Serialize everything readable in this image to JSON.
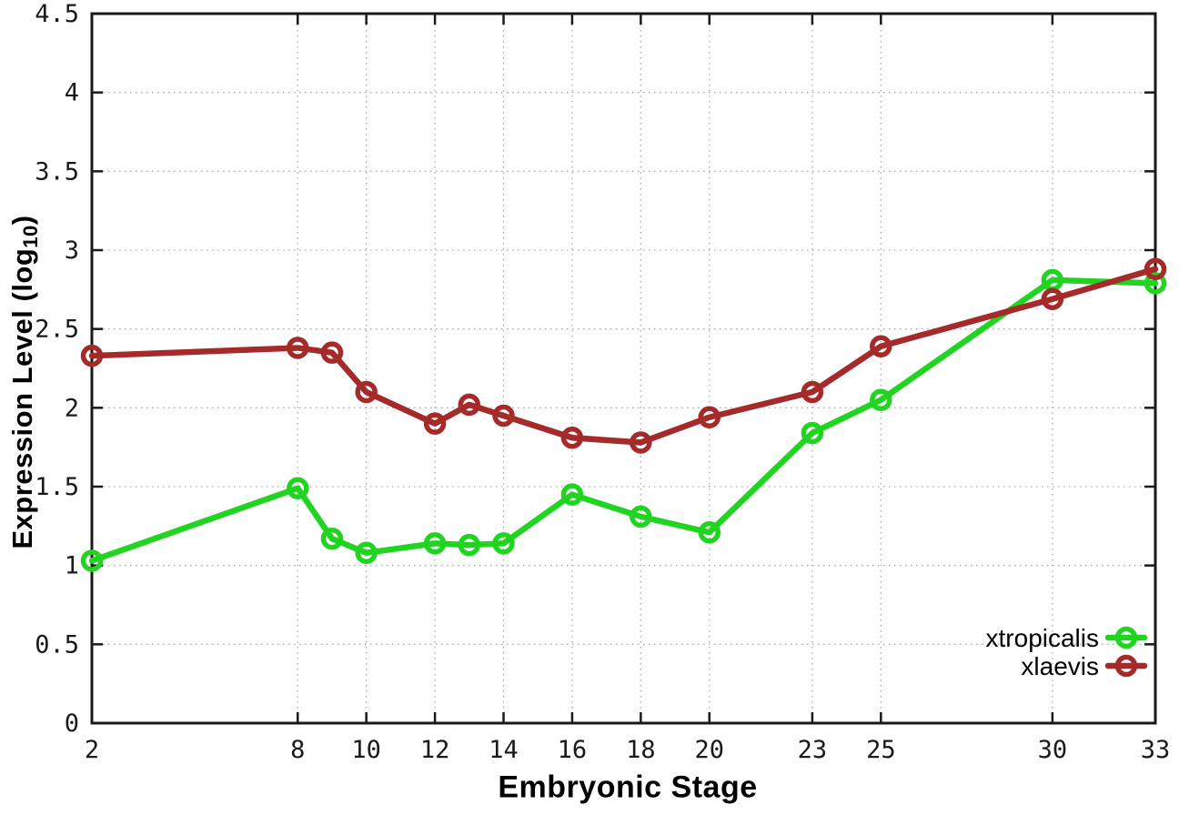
{
  "chart_data": {
    "type": "line",
    "title": "",
    "xlabel": "Embryonic Stage",
    "ylabel": "Expression Level (log10)",
    "ylabel_parts": {
      "prefix": "Expression Level (log",
      "sub": "10",
      "suffix": ")"
    },
    "xlim": [
      2,
      33
    ],
    "ylim": [
      0,
      4.5
    ],
    "grid": true,
    "legend_position": "bottom-right",
    "x_ticks": [
      2,
      8,
      10,
      12,
      14,
      16,
      18,
      20,
      23,
      25,
      30,
      33
    ],
    "y_ticks": [
      "0",
      "0.5",
      "1",
      "1.5",
      "2",
      "2.5",
      "3",
      "3.5",
      "4",
      "4.5"
    ],
    "x": [
      2,
      8,
      9,
      10,
      12,
      13,
      14,
      16,
      18,
      20,
      23,
      25,
      30,
      33
    ],
    "series": [
      {
        "name": "xtropicalis",
        "color": "#22d422",
        "values": [
          1.03,
          1.49,
          1.17,
          1.08,
          1.14,
          1.13,
          1.14,
          1.45,
          1.31,
          1.21,
          1.84,
          2.05,
          2.81,
          2.79
        ]
      },
      {
        "name": "xlaevis",
        "color": "#a52a2a",
        "values": [
          2.33,
          2.38,
          2.35,
          2.1,
          1.9,
          2.02,
          1.95,
          1.81,
          1.78,
          1.94,
          2.1,
          2.39,
          2.69,
          2.88
        ]
      }
    ]
  },
  "style": {
    "border_color": "#1a1a1a",
    "grid_color": "#aaaaaa",
    "tick_color": "#1a1a1a",
    "tick_label_color": "#1a1a1a",
    "legend_text_color": "#000000",
    "background": "#ffffff"
  }
}
